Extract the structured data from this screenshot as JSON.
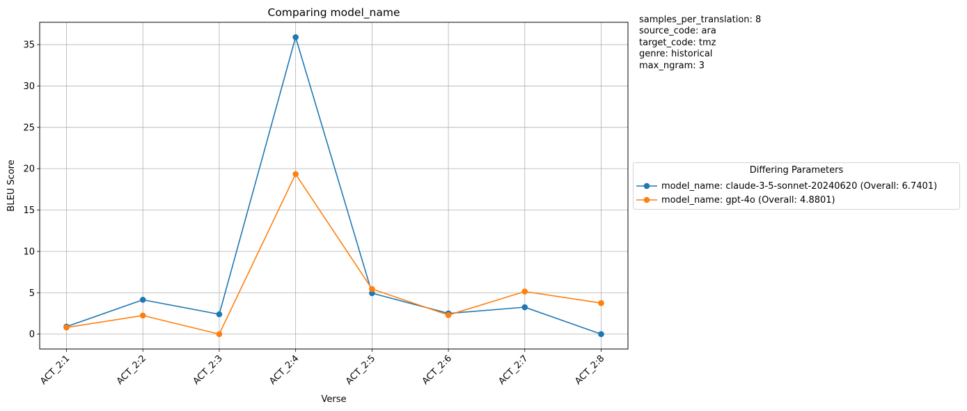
{
  "chart_data": {
    "type": "line",
    "title": "Comparing model_name",
    "xlabel": "Verse",
    "ylabel": "BLEU Score",
    "categories": [
      "ACT_2:1",
      "ACT_2:2",
      "ACT_2:3",
      "ACT_2:4",
      "ACT_2:5",
      "ACT_2:6",
      "ACT_2:7",
      "ACT_2:8"
    ],
    "ylim": [
      -1.8,
      37.7
    ],
    "yticks": [
      0,
      5,
      10,
      15,
      20,
      25,
      30,
      35
    ],
    "grid": true,
    "legend_title": "Differing Parameters",
    "legend_position": "right",
    "series": [
      {
        "name": "model_name: claude-3-5-sonnet-20240620 (Overall: 6.7401)",
        "color": "#1f77b4",
        "values": [
          0.9,
          4.15,
          2.4,
          35.9,
          4.95,
          2.5,
          3.25,
          0.0
        ]
      },
      {
        "name": "model_name: gpt-4o (Overall: 4.8801)",
        "color": "#ff7f0e",
        "values": [
          0.8,
          2.25,
          0.0,
          19.35,
          5.45,
          2.3,
          5.15,
          3.75
        ]
      }
    ]
  },
  "parameters": [
    "samples_per_translation: 8",
    "source_code: ara",
    "target_code: tmz",
    "genre: historical",
    "max_ngram: 3"
  ]
}
